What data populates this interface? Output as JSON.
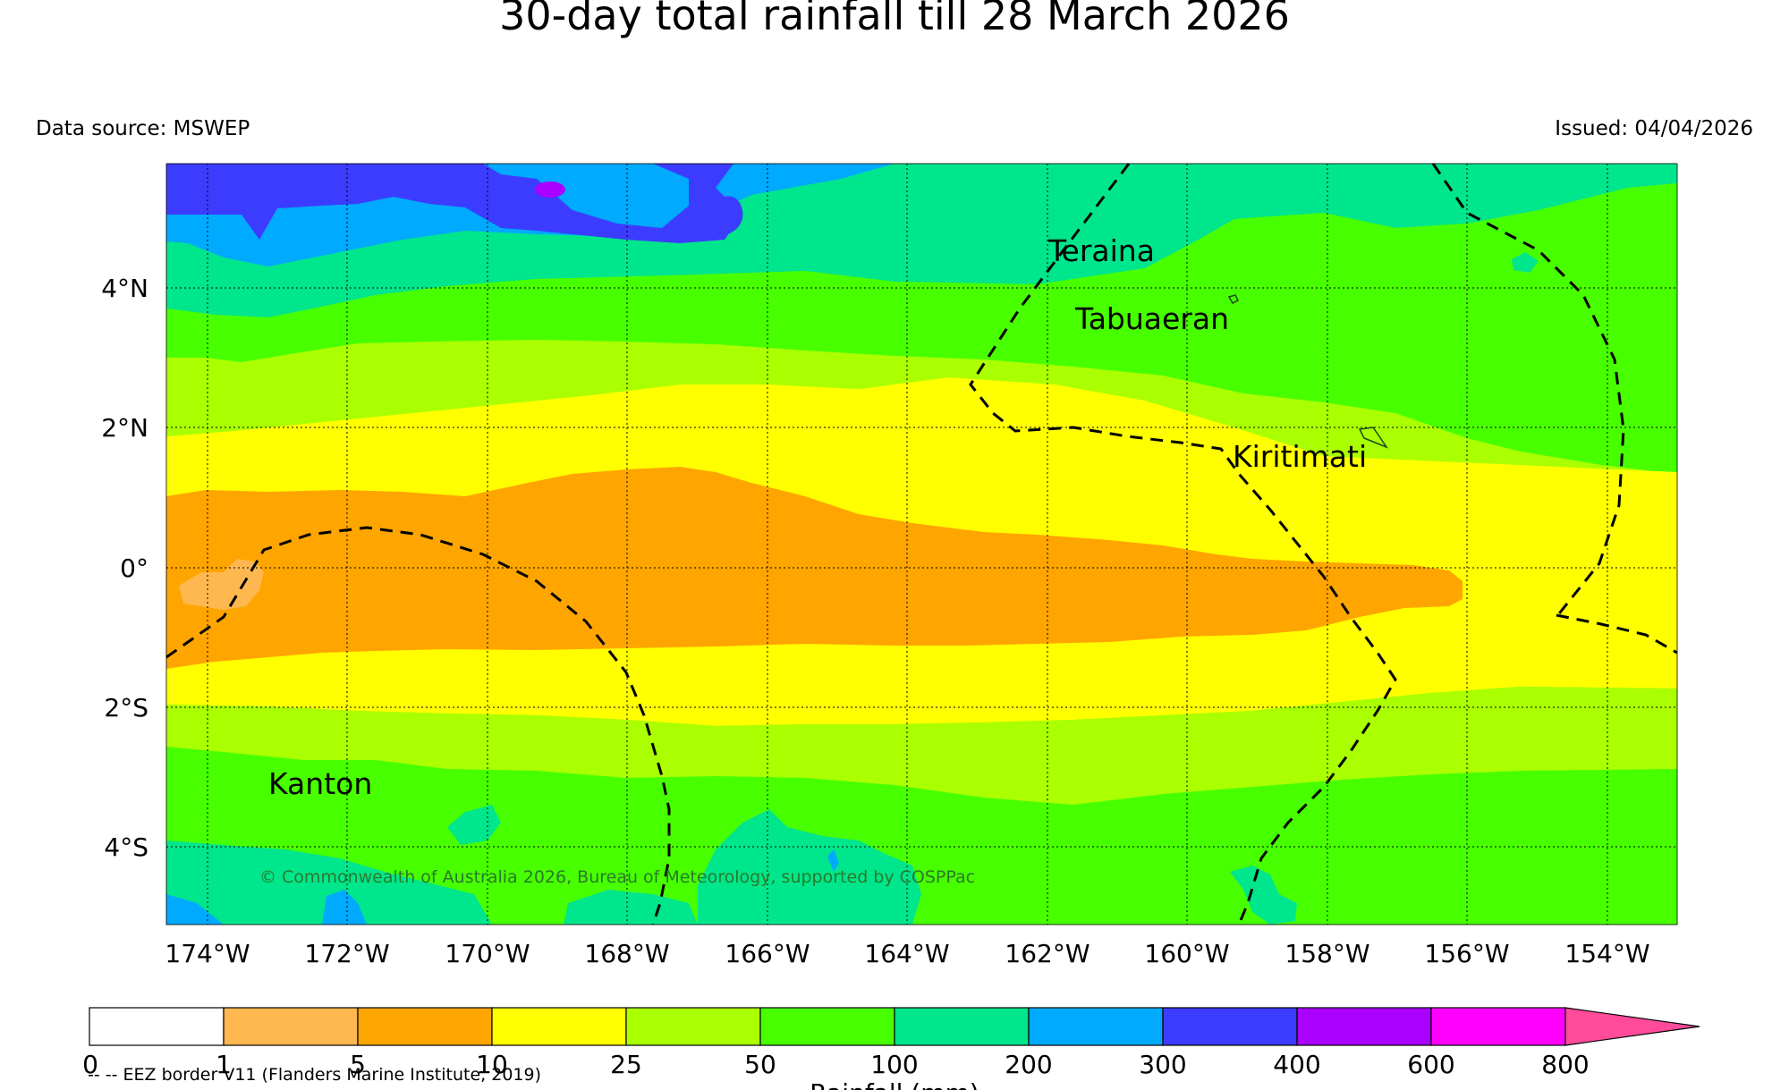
{
  "title": "30-day total rainfall till 28 March 2026",
  "data_source": "Data source: MSWEP",
  "issued": "Issued: 04/04/2026",
  "copyright": "© Commonwealth of Australia 2026, Bureau of Meteorology, supported by COSPPac",
  "eez_note": "-- -- EEZ border V11 (Flanders Marine Institute, 2019)",
  "colorbar_label": "Rainfall (mm)",
  "lat_ticks": [
    "4°N",
    "2°N",
    "0°",
    "2°S",
    "4°S"
  ],
  "lon_ticks": [
    "174°W",
    "172°W",
    "170°W",
    "168°W",
    "166°W",
    "164°W",
    "162°W",
    "160°W",
    "158°W",
    "156°W",
    "154°W"
  ],
  "places": [
    {
      "name": "Teraina",
      "lon": -160.4,
      "lat": 4.7
    },
    {
      "name": "Tabuaeran",
      "lon": -159.4,
      "lat": 3.8
    },
    {
      "name": "Kiritimati",
      "lon": -157.4,
      "lat": 1.9
    },
    {
      "name": "Kanton",
      "lon": -171.7,
      "lat": -2.8
    }
  ],
  "legend": {
    "ticks": [
      "0",
      "1",
      "5",
      "10",
      "25",
      "50",
      "100",
      "200",
      "300",
      "400",
      "600",
      "800"
    ],
    "colors": [
      "#ffffff",
      "#ffb84f",
      "#ffa500",
      "#ffff00",
      "#aaff00",
      "#48ff00",
      "#00e68c",
      "#00aaff",
      "#3c3cff",
      "#aa00ff",
      "#ff00ff",
      "#ff4b9a"
    ]
  }
}
